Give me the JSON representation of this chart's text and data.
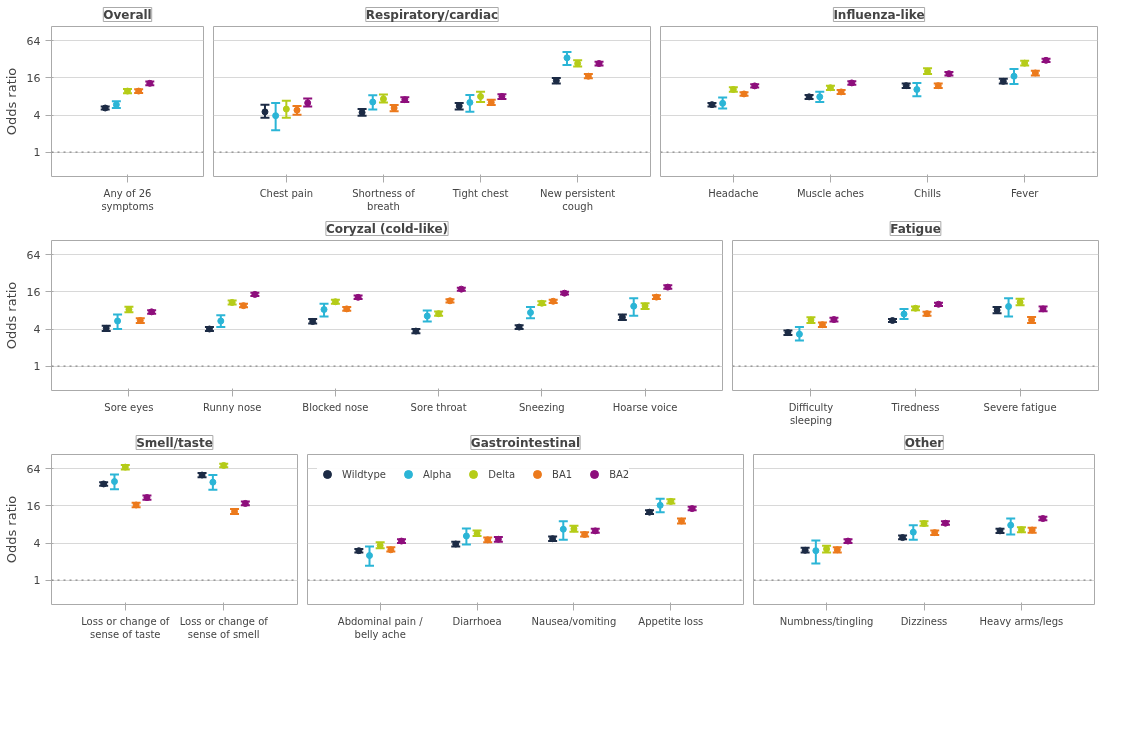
{
  "chart_data": [
    {
      "type": "scatter",
      "title": "Overall",
      "ylabel": "Odds ratio",
      "categories": [
        "Any of 26 symptoms"
      ],
      "log": true,
      "ylim": [
        0.4,
        110
      ],
      "yticks": [
        1,
        4,
        16,
        64
      ],
      "grid": "y",
      "marker": "circle",
      "ref_lines": [
        {
          "axis": "y",
          "value": 1,
          "line_style": "dotted"
        }
      ],
      "series": [
        {
          "color": "#1c2b45",
          "values": [
            5.2
          ],
          "errors": [
            [
              4.9,
              5.5
            ]
          ]
        },
        {
          "color": "#2bb5d6",
          "values": [
            5.9
          ],
          "errors": [
            [
              5.2,
              6.7
            ]
          ]
        },
        {
          "color": "#b5cc18",
          "values": [
            9.8
          ],
          "errors": [
            [
              9,
              10.6
            ]
          ]
        },
        {
          "color": "#ec7a1c",
          "values": [
            9.8
          ],
          "errors": [
            [
              9.1,
              10.5
            ]
          ]
        },
        {
          "color": "#8e0e7c",
          "values": [
            13.1
          ],
          "errors": [
            [
              12.2,
              14
            ]
          ]
        }
      ]
    },
    {
      "type": "scatter",
      "title": "Respiratory/cardiac",
      "categories": [
        "Chest pain",
        "Shortness of breath",
        "Tight chest",
        "New persistent cough"
      ],
      "log": true,
      "ylim": [
        0.4,
        110
      ],
      "yticks": [
        1,
        4,
        16,
        64
      ],
      "grid": "y",
      "marker": "circle",
      "tick_labels": "x",
      "ref_lines": [
        {
          "axis": "y",
          "value": 1,
          "line_style": "dotted"
        }
      ],
      "series": [
        {
          "color": "#1c2b45",
          "values": [
            4.5,
            4.4,
            5.6,
            14.5
          ],
          "errors": [
            [
              3.6,
              5.9
            ],
            [
              3.9,
              5.0
            ],
            [
              4.9,
              6.3
            ],
            [
              13,
              16
            ]
          ]
        },
        {
          "color": "#2bb5d6",
          "values": [
            3.9,
            6.5,
            6.4,
            34
          ],
          "errors": [
            [
              2.25,
              6.3
            ],
            [
              4.9,
              8.4
            ],
            [
              4.5,
              8.5
            ],
            [
              26,
              42.5
            ]
          ]
        },
        {
          "color": "#b5cc18",
          "values": [
            5.0,
            7.3,
            8.0,
            27.5
          ],
          "errors": [
            [
              3.6,
              6.8
            ],
            [
              6.4,
              8.6
            ],
            [
              6.5,
              9.6
            ],
            [
              24.5,
              31
            ]
          ]
        },
        {
          "color": "#ec7a1c",
          "values": [
            4.8,
            5.2,
            6.4,
            17.1
          ],
          "errors": [
            [
              4.05,
              5.6
            ],
            [
              4.6,
              5.8
            ],
            [
              5.8,
              7.1
            ],
            [
              15.8,
              18.5
            ]
          ]
        },
        {
          "color": "#8e0e7c",
          "values": [
            6.3,
            7.1,
            8.0,
            27.5
          ],
          "errors": [
            [
              5.5,
              7.4
            ],
            [
              6.5,
              7.8
            ],
            [
              7.3,
              8.7
            ],
            [
              25.5,
              29.5
            ]
          ]
        }
      ]
    },
    {
      "type": "scatter",
      "title": "Influenza-like",
      "categories": [
        "Headache",
        "Muscle aches",
        "Chills",
        "Fever"
      ],
      "log": true,
      "ylim": [
        0.4,
        110
      ],
      "yticks": [
        1,
        4,
        16,
        64
      ],
      "grid": "y",
      "marker": "circle",
      "tick_labels": "x",
      "ref_lines": [
        {
          "axis": "y",
          "value": 1,
          "line_style": "dotted"
        }
      ],
      "series": [
        {
          "color": "#1c2b45",
          "values": [
            5.9,
            7.9,
            12.0,
            14.1
          ],
          "errors": [
            [
              5.5,
              6.3
            ],
            [
              7.3,
              8.5
            ],
            [
              11,
              13
            ],
            [
              13,
              15.5
            ]
          ]
        },
        {
          "color": "#2bb5d6",
          "values": [
            6.2,
            7.9,
            10.4,
            17.1
          ],
          "errors": [
            [
              5.1,
              7.7
            ],
            [
              6.5,
              9.6
            ],
            [
              8.1,
              13.3
            ],
            [
              12.8,
              22.5
            ]
          ]
        },
        {
          "color": "#b5cc18",
          "values": [
            10.4,
            11.1,
            20.5,
            27.9
          ],
          "errors": [
            [
              9.6,
              11.3
            ],
            [
              10.2,
              12
            ],
            [
              18.5,
              23
            ],
            [
              25.5,
              30.5
            ]
          ]
        },
        {
          "color": "#ec7a1c",
          "values": [
            8.8,
            9.5,
            12.0,
            19.3
          ],
          "errors": [
            [
              8.2,
              9.4
            ],
            [
              8.8,
              10.2
            ],
            [
              11,
              13
            ],
            [
              17.5,
              21
            ]
          ]
        },
        {
          "color": "#8e0e7c",
          "values": [
            11.9,
            13.3,
            18.8,
            31
          ],
          "errors": [
            [
              11.2,
              12.6
            ],
            [
              12.4,
              14.2
            ],
            [
              17.5,
              20
            ],
            [
              29,
              33
            ]
          ]
        }
      ]
    },
    {
      "type": "scatter",
      "title": "Coryzal (cold-like)",
      "ylabel": "Odds ratio",
      "categories": [
        "Sore eyes",
        "Runny nose",
        "Blocked nose",
        "Sore throat",
        "Sneezing",
        "Hoarse voice"
      ],
      "log": true,
      "ylim": [
        0.4,
        110
      ],
      "yticks": [
        1,
        4,
        16,
        64
      ],
      "grid": "y",
      "marker": "circle",
      "ref_lines": [
        {
          "axis": "y",
          "value": 1,
          "line_style": "dotted"
        }
      ],
      "series": [
        {
          "color": "#1c2b45",
          "values": [
            4.1,
            4.0,
            5.3,
            3.7,
            4.3,
            6.2
          ],
          "errors": [
            [
              3.7,
              4.5
            ],
            [
              3.7,
              4.3
            ],
            [
              4.9,
              5.8
            ],
            [
              3.4,
              4.0
            ],
            [
              4.0,
              4.6
            ],
            [
              5.6,
              6.9
            ]
          ]
        },
        {
          "color": "#2bb5d6",
          "values": [
            5.4,
            5.4,
            8.3,
            6.5,
            7.4,
            9.4
          ],
          "errors": [
            [
              4.0,
              6.9
            ],
            [
              4.3,
              6.7
            ],
            [
              6.4,
              10.3
            ],
            [
              5.3,
              8.0
            ],
            [
              6.0,
              9.1
            ],
            [
              6.6,
              12.6
            ]
          ]
        },
        {
          "color": "#b5cc18",
          "values": [
            8.3,
            10.8,
            11.1,
            7.1,
            10.5,
            9.5
          ],
          "errors": [
            [
              7.5,
              9.2
            ],
            [
              10,
              11.6
            ],
            [
              10.3,
              12
            ],
            [
              6.6,
              7.7
            ],
            [
              9.8,
              11.3
            ],
            [
              8.5,
              10.5
            ]
          ]
        },
        {
          "color": "#ec7a1c",
          "values": [
            5.5,
            9.6,
            8.5,
            11.5,
            11.3,
            13.2
          ],
          "errors": [
            [
              5.0,
              6.0
            ],
            [
              9,
              10.3
            ],
            [
              7.9,
              9.1
            ],
            [
              10.8,
              12.2
            ],
            [
              10.6,
              12
            ],
            [
              12.3,
              14.2
            ]
          ]
        },
        {
          "color": "#8e0e7c",
          "values": [
            7.6,
            14.6,
            13.1,
            17.8,
            15.3,
            19.2
          ],
          "errors": [
            [
              7.1,
              8.1
            ],
            [
              13.8,
              15.5
            ],
            [
              12.3,
              14
            ],
            [
              16.8,
              18.8
            ],
            [
              14.5,
              16.2
            ],
            [
              18,
              20.5
            ]
          ]
        }
      ]
    },
    {
      "type": "scatter",
      "title": "Fatigue",
      "categories": [
        "Difficulty sleeping",
        "Tiredness",
        "Severe fatigue"
      ],
      "log": true,
      "ylim": [
        0.4,
        110
      ],
      "yticks": [
        1,
        4,
        16,
        64
      ],
      "grid": "y",
      "marker": "circle",
      "tick_labels": "x",
      "ref_lines": [
        {
          "axis": "y",
          "value": 1,
          "line_style": "dotted"
        }
      ],
      "series": [
        {
          "color": "#1c2b45",
          "values": [
            3.5,
            5.5,
            8.1
          ],
          "errors": [
            [
              3.2,
              3.8
            ],
            [
              5.2,
              5.8
            ],
            [
              7.2,
              9.1
            ]
          ]
        },
        {
          "color": "#2bb5d6",
          "values": [
            3.3,
            7.0,
            9.3
          ],
          "errors": [
            [
              2.6,
              4.3
            ],
            [
              5.8,
              8.5
            ],
            [
              6.4,
              12.6
            ]
          ]
        },
        {
          "color": "#b5cc18",
          "values": [
            5.6,
            8.7,
            10.9
          ],
          "errors": [
            [
              5.0,
              6.2
            ],
            [
              8.1,
              9.3
            ],
            [
              9.7,
              12.4
            ]
          ]
        },
        {
          "color": "#ec7a1c",
          "values": [
            4.7,
            7.1,
            5.6
          ],
          "errors": [
            [
              4.3,
              5.1
            ],
            [
              6.6,
              7.6
            ],
            [
              5.0,
              6.3
            ]
          ]
        },
        {
          "color": "#8e0e7c",
          "values": [
            5.7,
            10.1,
            8.5
          ],
          "errors": [
            [
              5.3,
              6.1
            ],
            [
              9.5,
              10.7
            ],
            [
              7.8,
              9.3
            ]
          ]
        }
      ]
    },
    {
      "type": "scatter",
      "title": "Smell/taste",
      "ylabel": "Odds ratio",
      "categories": [
        "Loss or change of sense of taste",
        "Loss or change of sense of smell"
      ],
      "log": true,
      "ylim": [
        0.4,
        110
      ],
      "yticks": [
        1,
        4,
        16,
        64
      ],
      "grid": "y",
      "marker": "circle",
      "ref_lines": [
        {
          "axis": "y",
          "value": 1,
          "line_style": "dotted"
        }
      ],
      "series": [
        {
          "color": "#1c2b45",
          "values": [
            36.5,
            51
          ],
          "errors": [
            [
              34,
              39
            ],
            [
              47,
              55
            ]
          ]
        },
        {
          "color": "#2bb5d6",
          "values": [
            40,
            39
          ],
          "errors": [
            [
              30,
              52
            ],
            [
              29.5,
              51
            ]
          ]
        },
        {
          "color": "#b5cc18",
          "values": [
            68.6,
            73
          ],
          "errors": [
            [
              63,
              74
            ],
            [
              68,
              78
            ]
          ]
        },
        {
          "color": "#ec7a1c",
          "values": [
            16.6,
            13
          ],
          "errors": [
            [
              15.2,
              18
            ],
            [
              11.9,
              14.3
            ]
          ]
        },
        {
          "color": "#8e0e7c",
          "values": [
            21.9,
            17.6
          ],
          "errors": [
            [
              20.3,
              23.6
            ],
            [
              16.4,
              19
            ]
          ]
        }
      ]
    },
    {
      "type": "scatter",
      "title": "Gastrointestinal",
      "categories": [
        "Abdominal pain / belly ache",
        "Diarrhoea",
        "Nausea/vomiting",
        "Appetite loss"
      ],
      "log": true,
      "ylim": [
        0.4,
        110
      ],
      "yticks": [
        1,
        4,
        16,
        64
      ],
      "grid": "y",
      "marker": "circle",
      "tick_labels": "x",
      "legend": "top left",
      "ref_lines": [
        {
          "axis": "y",
          "value": 1,
          "line_style": "dotted"
        }
      ],
      "series": [
        {
          "name": "Wildtype",
          "color": "#1c2b45",
          "values": [
            3.0,
            3.85,
            4.7,
            12.7
          ],
          "errors": [
            [
              2.8,
              3.2
            ],
            [
              3.5,
              4.2
            ],
            [
              4.3,
              5.1
            ],
            [
              11.8,
              13.6
            ]
          ]
        },
        {
          "name": "Alpha",
          "color": "#2bb5d6",
          "values": [
            2.5,
            5.2,
            6.7,
            16.4
          ],
          "errors": [
            [
              1.7,
              3.5
            ],
            [
              3.8,
              6.9
            ],
            [
              4.5,
              9.0
            ],
            [
              12.6,
              21
            ]
          ]
        },
        {
          "name": "Delta",
          "color": "#b5cc18",
          "values": [
            3.65,
            5.7,
            6.8,
            19
          ],
          "errors": [
            [
              3.3,
              4.1
            ],
            [
              5.2,
              6.4
            ],
            [
              6.1,
              7.6
            ],
            [
              17.5,
              20.5
            ]
          ]
        },
        {
          "name": "BA1",
          "color": "#ec7a1c",
          "values": [
            3.1,
            4.5,
            5.5,
            9.1
          ],
          "errors": [
            [
              2.9,
              3.4
            ],
            [
              4.1,
              4.9
            ],
            [
              5.1,
              6.0
            ],
            [
              8.3,
              10
            ]
          ]
        },
        {
          "name": "BA2",
          "color": "#8e0e7c",
          "values": [
            4.3,
            4.6,
            6.3,
            14.5
          ],
          "errors": [
            [
              4.0,
              4.6
            ],
            [
              4.2,
              5.0
            ],
            [
              5.9,
              6.8
            ],
            [
              13.6,
              15.5
            ]
          ]
        }
      ]
    },
    {
      "type": "scatter",
      "title": "Other",
      "categories": [
        "Numbness/tingling",
        "Dizziness",
        "Heavy arms/legs"
      ],
      "log": true,
      "ylim": [
        0.4,
        110
      ],
      "yticks": [
        1,
        4,
        16,
        64
      ],
      "grid": "y",
      "marker": "circle",
      "tick_labels": "x",
      "ref_lines": [
        {
          "axis": "y",
          "value": 1,
          "line_style": "dotted"
        }
      ],
      "series": [
        {
          "color": "#1c2b45",
          "values": [
            3.05,
            4.9,
            6.3
          ],
          "errors": [
            [
              2.8,
              3.35
            ],
            [
              4.6,
              5.3
            ],
            [
              5.8,
              6.8
            ]
          ]
        },
        {
          "color": "#2bb5d6",
          "values": [
            3.0,
            6.0,
            7.8
          ],
          "errors": [
            [
              1.85,
              4.4
            ],
            [
              4.5,
              7.8
            ],
            [
              5.5,
              10.0
            ]
          ]
        },
        {
          "color": "#b5cc18",
          "values": [
            3.2,
            8.3,
            6.6
          ],
          "errors": [
            [
              2.8,
              3.6
            ],
            [
              7.6,
              9.0
            ],
            [
              6.0,
              7.2
            ]
          ]
        },
        {
          "color": "#ec7a1c",
          "values": [
            3.1,
            5.9,
            6.5
          ],
          "errors": [
            [
              2.8,
              3.4
            ],
            [
              5.4,
              6.4
            ],
            [
              5.9,
              7.1
            ]
          ]
        },
        {
          "color": "#8e0e7c",
          "values": [
            4.3,
            8.4,
            10.0
          ],
          "errors": [
            [
              4.0,
              4.6
            ],
            [
              7.9,
              9.0
            ],
            [
              9.4,
              10.7
            ]
          ]
        }
      ]
    }
  ]
}
